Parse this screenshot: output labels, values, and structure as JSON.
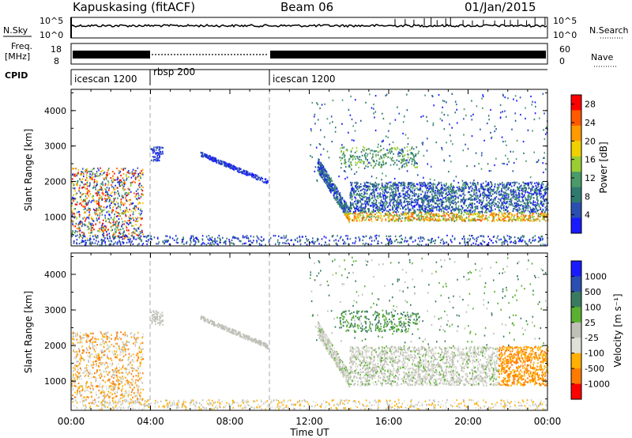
{
  "header": {
    "station": "Kapuskasing (fitACF)",
    "beam": "Beam 06",
    "date": "01/Jan/2015"
  },
  "nsky_panel": {
    "left_label": "N.Sky",
    "right_label": "N.Search",
    "ticks": [
      "10^5",
      "10^0"
    ]
  },
  "freq_panel": {
    "left_label_1": "Freq.",
    "left_label_2": "[MHz]",
    "right_label": "Nave",
    "left_ticks": [
      "18",
      "8"
    ],
    "right_ticks": [
      "60",
      "0"
    ]
  },
  "cpid_panel": {
    "label": "CPID",
    "segments": [
      {
        "name": "icescan 1200",
        "start_h": 0,
        "end_h": 4
      },
      {
        "name": "rbsp 200",
        "start_h": 4,
        "end_h": 10
      },
      {
        "name": "icescan 1200",
        "start_h": 10,
        "end_h": 24
      }
    ]
  },
  "colors": {
    "power_scale": [
      "#1a1aff",
      "#2a4fb0",
      "#2f7a70",
      "#4a9a6a",
      "#9acd32",
      "#f0d000",
      "#ff9a00",
      "#ff5a00",
      "#ff0000"
    ],
    "velocity_scale": [
      "#1a1aff",
      "#2a4fb0",
      "#3a7a60",
      "#5ab030",
      "#c0c0b8",
      "#e0e0d8",
      "#ffb000",
      "#ff7a00",
      "#ff0000"
    ]
  },
  "chart_data": [
    {
      "type": "heatmap",
      "title": "",
      "xlabel": "Time UT",
      "ylabel": "Slant Range [km]",
      "xlim": [
        0,
        24
      ],
      "ylim": [
        180,
        4600
      ],
      "x_ticks": [
        "00:00",
        "04:00",
        "08:00",
        "12:00",
        "16:00",
        "20:00",
        "00:00"
      ],
      "y_ticks": [
        1000,
        2000,
        3000,
        4000
      ],
      "colorbar": {
        "label": "Power [dB]",
        "ticks": [
          4,
          8,
          12,
          16,
          20,
          24,
          28
        ],
        "range": [
          0,
          30
        ]
      }
    },
    {
      "type": "heatmap",
      "title": "",
      "xlabel": "Time UT",
      "ylabel": "Slant Range [km]",
      "xlim": [
        0,
        24
      ],
      "ylim": [
        180,
        4600
      ],
      "x_ticks": [
        "00:00",
        "04:00",
        "08:00",
        "12:00",
        "16:00",
        "20:00",
        "00:00"
      ],
      "y_ticks": [
        1000,
        2000,
        3000,
        4000
      ],
      "colorbar": {
        "label": "Velocity [m s⁻¹]",
        "ticks": [
          "1000",
          "500",
          "100",
          "25",
          "-25",
          "-100",
          "-500",
          "-1000"
        ]
      }
    }
  ]
}
